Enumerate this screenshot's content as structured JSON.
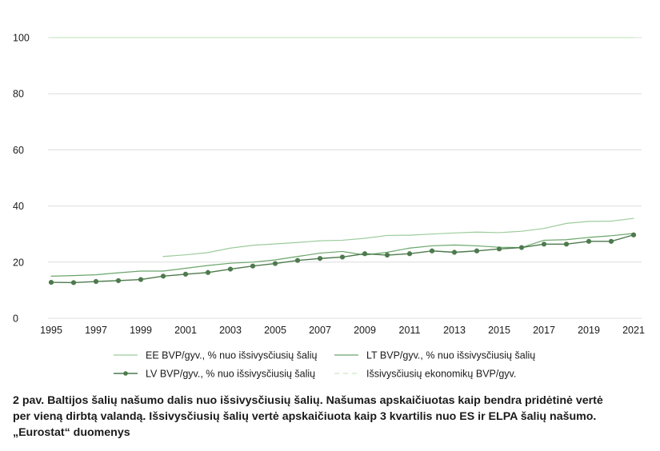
{
  "chart_data": {
    "type": "line",
    "title": "",
    "xlabel": "",
    "ylabel": "",
    "xlim": [
      1995,
      2021
    ],
    "ylim": [
      0,
      100
    ],
    "y_ticks": [
      0,
      20,
      40,
      60,
      80,
      100
    ],
    "x_tick_labels": [
      "1995",
      "1997",
      "1999",
      "2001",
      "2003",
      "2005",
      "2007",
      "2009",
      "2011",
      "2013",
      "2015",
      "2017",
      "2019",
      "2021"
    ],
    "grid": "horizontal",
    "legend_position": "bottom",
    "x": [
      1995,
      1996,
      1997,
      1998,
      1999,
      2000,
      2001,
      2002,
      2003,
      2004,
      2005,
      2006,
      2007,
      2008,
      2009,
      2010,
      2011,
      2012,
      2013,
      2014,
      2015,
      2016,
      2017,
      2018,
      2019,
      2020,
      2021
    ],
    "series": [
      {
        "name": "EE BVP/gyv., % nuo išsivysčiusių šalių",
        "color": "#9ccc9c",
        "style": "line",
        "values": [
          null,
          null,
          null,
          null,
          null,
          22.0,
          22.6,
          23.4,
          25.0,
          26.0,
          26.5,
          27.0,
          27.6,
          27.8,
          28.5,
          29.5,
          29.6,
          30.0,
          30.4,
          30.7,
          30.5,
          31.0,
          32.0,
          33.8,
          34.5,
          34.6,
          35.6
        ]
      },
      {
        "name": "LT BVP/gyv., % nuo išsivysčiusių šalių",
        "color": "#6aa56a",
        "style": "line",
        "values": [
          15.0,
          15.2,
          15.5,
          16.2,
          16.8,
          16.8,
          17.8,
          18.8,
          19.6,
          20.0,
          20.8,
          22.0,
          23.2,
          23.8,
          22.5,
          23.5,
          25.0,
          25.8,
          26.1,
          25.8,
          25.3,
          25.2,
          27.8,
          28.0,
          28.8,
          29.4,
          30.2
        ]
      },
      {
        "name": "LV BVP/gyv., % nuo išsivysčiusių šalių",
        "color": "#4d7a4d",
        "style": "line-marker",
        "values": [
          12.8,
          12.7,
          13.1,
          13.4,
          13.8,
          15.0,
          15.7,
          16.3,
          17.5,
          18.6,
          19.5,
          20.6,
          21.3,
          21.8,
          23.0,
          22.5,
          23.0,
          24.0,
          23.5,
          24.0,
          24.7,
          25.2,
          26.4,
          26.4,
          27.4,
          27.4,
          29.7
        ]
      },
      {
        "name": "Išsivysčiusių ekonomikų BVP/gyv.",
        "color": "#c9e6c4",
        "style": "dashed",
        "values": [
          100,
          100,
          100,
          100,
          100,
          100,
          100,
          100,
          100,
          100,
          100,
          100,
          100,
          100,
          100,
          100,
          100,
          100,
          100,
          100,
          100,
          100,
          100,
          100,
          100,
          100,
          100
        ]
      }
    ]
  },
  "caption": {
    "line1": "2 pav. Baltijos šalių našumo dalis nuo išsivysčiusių šalių. Našumas apskaičiuotas kaip bendra pridėtinė vertė",
    "line2": "per vieną dirbtą valandą. Išsivysčiusių šalių vertė apskaičiuota kaip 3 kvartilis nuo ES ir ELPA šalių našumo.",
    "line3": "„Eurostat“ duomenys"
  }
}
